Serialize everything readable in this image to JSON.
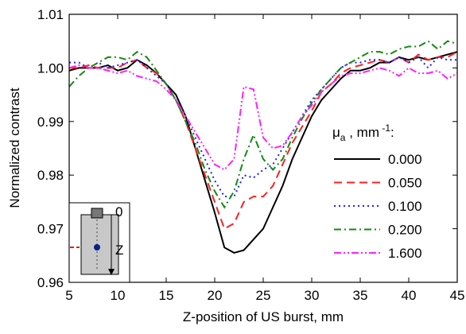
{
  "chart_data": {
    "type": "line",
    "x_label": "Z-position of US burst, mm",
    "y_label": "Normalized contrast",
    "legend_title": [
      "μ",
      "a",
      " , mm",
      " -1",
      ":"
    ],
    "inset_labels": [
      "0",
      "Z"
    ],
    "x": [
      5,
      6,
      7,
      8,
      9,
      10,
      11,
      12,
      13,
      14,
      15,
      16,
      17,
      18,
      19,
      20,
      21,
      22,
      23,
      24,
      25,
      26,
      27,
      28,
      29,
      30,
      31,
      32,
      33,
      34,
      35,
      36,
      37,
      38,
      39,
      40,
      41,
      42,
      43,
      44,
      45
    ],
    "series": [
      {
        "name": "0.000",
        "color": "#000000",
        "dash": "solid",
        "values": [
          0.9995,
          1.0,
          1.0,
          1.0,
          1.0005,
          0.9995,
          1.0,
          1.0015,
          1.0005,
          0.999,
          0.997,
          0.995,
          0.991,
          0.985,
          0.979,
          0.973,
          0.9665,
          0.9655,
          0.966,
          0.968,
          0.97,
          0.974,
          0.978,
          0.983,
          0.987,
          0.991,
          0.994,
          0.996,
          0.998,
          0.9995,
          0.9995,
          1.0,
          1.001,
          1.001,
          1.002,
          1.0015,
          1.002,
          1.0015,
          1.002,
          1.0025,
          1.003
        ]
      },
      {
        "name": "0.050",
        "color": "#ff2020",
        "dash": "dash",
        "values": [
          1.0,
          1.0,
          1.0005,
          1.0,
          1.0,
          1.0,
          1.001,
          1.0015,
          1.0,
          0.999,
          0.997,
          0.994,
          0.99,
          0.985,
          0.98,
          0.975,
          0.97,
          0.971,
          0.975,
          0.976,
          0.976,
          0.978,
          0.982,
          0.986,
          0.989,
          0.992,
          0.9955,
          0.997,
          0.999,
          1.0,
          1.0005,
          1.001,
          1.0015,
          1.001,
          1.002,
          1.001,
          1.0025,
          1.0015,
          1.002,
          1.002,
          1.003
        ]
      },
      {
        "name": "0.100",
        "color": "#1f1fff",
        "dash": "dot",
        "values": [
          1.001,
          1.001,
          1.0,
          1.001,
          1.0,
          1.0005,
          1.001,
          1.0015,
          1.0,
          0.9985,
          0.997,
          0.994,
          0.991,
          0.987,
          0.983,
          0.979,
          0.976,
          0.976,
          0.98,
          0.9795,
          0.981,
          0.982,
          0.985,
          0.988,
          0.991,
          0.994,
          0.996,
          0.998,
          1.0,
          1.001,
          1.001,
          1.0015,
          1.0015,
          1.001,
          1.002,
          1.001,
          1.002,
          1.0,
          1.002,
          1.0015,
          1.0015
        ]
      },
      {
        "name": "0.200",
        "color": "#138a13",
        "dash": "dashdot",
        "values": [
          0.9965,
          0.9985,
          1.0,
          1.001,
          1.002,
          1.002,
          1.0015,
          1.003,
          1.002,
          0.9995,
          0.997,
          0.994,
          0.99,
          0.986,
          0.981,
          0.977,
          0.974,
          0.977,
          0.983,
          0.9875,
          0.983,
          0.981,
          0.983,
          0.987,
          0.9905,
          0.9935,
          0.996,
          0.998,
          1.0,
          1.001,
          1.002,
          1.003,
          1.003,
          1.0025,
          1.0035,
          1.004,
          1.004,
          1.005,
          1.0035,
          1.005,
          1.0045
        ]
      },
      {
        "name": "1.600",
        "color": "#ff20ff",
        "dash": "dashdotdot",
        "values": [
          1.0,
          1.0005,
          1.0,
          1.0,
          0.9995,
          0.999,
          0.9995,
          0.9985,
          0.998,
          0.9975,
          0.996,
          0.994,
          0.991,
          0.988,
          0.985,
          0.982,
          0.981,
          0.983,
          0.9965,
          0.996,
          0.987,
          0.985,
          0.9855,
          0.988,
          0.991,
          0.993,
          0.9955,
          0.997,
          0.9985,
          0.999,
          0.999,
          0.9995,
          1.0,
          0.9995,
          0.9985,
          1.0,
          0.999,
          0.999,
          0.9995,
          0.998,
          0.999
        ]
      }
    ],
    "xlim": [
      5,
      45
    ],
    "xticks": [
      5,
      10,
      15,
      20,
      25,
      30,
      35,
      40,
      45
    ],
    "ylim": [
      0.96,
      1.01
    ],
    "yticks": [
      0.96,
      0.97,
      0.98,
      0.99,
      {
        "value": 1,
        "label": "1.00"
      },
      1.01
    ]
  }
}
